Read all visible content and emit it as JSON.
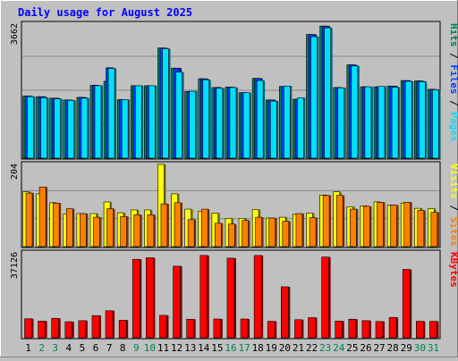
{
  "title": "Daily usage for August 2025",
  "colors": {
    "background": "#c0c0c0",
    "plot_background": "#c0c0c0",
    "title": "#0000ff",
    "hits": "#00805c",
    "files": "#0040ff",
    "pages": "#00e0ff",
    "visits": "#ffff00",
    "sites": "#ff8000",
    "kbytes": "#ff0000",
    "weekend_day_label": "#00805c",
    "day_label": "#000000"
  },
  "panel_labels": {
    "top": [
      {
        "text": "Hits",
        "color": "#00805c"
      },
      {
        "text": " / ",
        "color": "#000000"
      },
      {
        "text": "Files",
        "color": "#0040ff"
      },
      {
        "text": " / ",
        "color": "#000000"
      },
      {
        "text": "Pages",
        "color": "#00e0ff"
      }
    ],
    "middle": [
      {
        "text": "Visits",
        "color": "#ffff00"
      },
      {
        "text": " / ",
        "color": "#000000"
      },
      {
        "text": "Sites",
        "color": "#ff8000"
      }
    ],
    "bottom": [
      {
        "text": "KBytes",
        "color": "#ff0000"
      }
    ]
  },
  "chart_data": [
    {
      "type": "bar",
      "panel": "top",
      "max_label": "3662",
      "ylim": [
        0,
        3662
      ],
      "categories": [
        "1",
        "2",
        "3",
        "4",
        "5",
        "6",
        "7",
        "8",
        "9",
        "10",
        "11",
        "12",
        "13",
        "14",
        "15",
        "16",
        "17",
        "18",
        "19",
        "20",
        "21",
        "22",
        "23",
        "24",
        "25",
        "26",
        "27",
        "28",
        "29",
        "30",
        "31"
      ],
      "series": [
        {
          "name": "Hits",
          "values": [
            1700,
            1680,
            1640,
            1590,
            1660,
            1990,
            2100,
            1600,
            1980,
            1980,
            3010,
            2460,
            1820,
            2170,
            1930,
            1940,
            1790,
            2180,
            1590,
            1960,
            1610,
            3380,
            3610,
            1930,
            2550,
            1950,
            1950,
            1970,
            2120,
            2110,
            1880
          ]
        },
        {
          "name": "Files",
          "values": [
            1700,
            1680,
            1640,
            1590,
            1660,
            1990,
            2470,
            1600,
            1980,
            1980,
            3010,
            2460,
            1820,
            2170,
            1930,
            1940,
            1790,
            2180,
            1590,
            1960,
            1610,
            3380,
            3610,
            1930,
            2550,
            1950,
            1950,
            1970,
            2120,
            2110,
            1880
          ]
        },
        {
          "name": "Pages",
          "values": [
            1680,
            1650,
            1620,
            1580,
            1640,
            1980,
            2450,
            1600,
            1980,
            1980,
            2990,
            2350,
            1830,
            2140,
            1910,
            1930,
            1790,
            2120,
            1560,
            1970,
            1650,
            3320,
            3560,
            1920,
            2520,
            1950,
            1960,
            1940,
            2100,
            2090,
            1870
          ]
        }
      ]
    },
    {
      "type": "bar",
      "panel": "middle",
      "max_label": "204",
      "ylim": [
        0,
        204
      ],
      "categories": [
        "1",
        "2",
        "3",
        "4",
        "5",
        "6",
        "7",
        "8",
        "9",
        "10",
        "11",
        "12",
        "13",
        "14",
        "15",
        "16",
        "17",
        "18",
        "19",
        "20",
        "21",
        "22",
        "23",
        "24",
        "25",
        "26",
        "27",
        "28",
        "29",
        "30",
        "31"
      ],
      "series": [
        {
          "name": "Visits",
          "values": [
            136,
            131,
            109,
            81,
            82,
            82,
            111,
            84,
            91,
            91,
            204,
            131,
            93,
            88,
            83,
            70,
            70,
            92,
            71,
            73,
            80,
            83,
            128,
            136,
            99,
            101,
            111,
            103,
            108,
            95,
            94
          ]
        },
        {
          "name": "Sites",
          "values": [
            133,
            148,
            108,
            94,
            82,
            73,
            94,
            75,
            79,
            79,
            106,
            109,
            67,
            93,
            58,
            56,
            65,
            73,
            71,
            63,
            82,
            72,
            127,
            127,
            93,
            100,
            110,
            103,
            110,
            90,
            85
          ]
        }
      ]
    },
    {
      "type": "bar",
      "panel": "bottom",
      "max_label": "37126",
      "ylim": [
        0,
        37126
      ],
      "categories": [
        "1",
        "2",
        "3",
        "4",
        "5",
        "6",
        "7",
        "8",
        "9",
        "10",
        "11",
        "12",
        "13",
        "14",
        "15",
        "16",
        "17",
        "18",
        "19",
        "20",
        "21",
        "22",
        "23",
        "24",
        "25",
        "26",
        "27",
        "28",
        "29",
        "30",
        "31"
      ],
      "series": [
        {
          "name": "KBytes",
          "values": [
            8300,
            7300,
            8500,
            7000,
            7500,
            9700,
            11800,
            7700,
            34300,
            35000,
            9800,
            31300,
            8100,
            36000,
            8200,
            34800,
            8200,
            36000,
            7200,
            22300,
            7900,
            8800,
            35300,
            7300,
            8100,
            7500,
            7100,
            8900,
            29900,
            7200,
            7200
          ]
        }
      ]
    }
  ],
  "days": [
    {
      "label": "1",
      "weekend": false
    },
    {
      "label": "2",
      "weekend": true
    },
    {
      "label": "3",
      "weekend": true
    },
    {
      "label": "4",
      "weekend": false
    },
    {
      "label": "5",
      "weekend": false
    },
    {
      "label": "6",
      "weekend": false
    },
    {
      "label": "7",
      "weekend": false
    },
    {
      "label": "8",
      "weekend": false
    },
    {
      "label": "9",
      "weekend": true
    },
    {
      "label": "10",
      "weekend": true
    },
    {
      "label": "11",
      "weekend": false
    },
    {
      "label": "12",
      "weekend": false
    },
    {
      "label": "13",
      "weekend": false
    },
    {
      "label": "14",
      "weekend": false
    },
    {
      "label": "15",
      "weekend": false
    },
    {
      "label": "16",
      "weekend": true
    },
    {
      "label": "17",
      "weekend": true
    },
    {
      "label": "18",
      "weekend": false
    },
    {
      "label": "19",
      "weekend": false
    },
    {
      "label": "20",
      "weekend": false
    },
    {
      "label": "21",
      "weekend": false
    },
    {
      "label": "22",
      "weekend": false
    },
    {
      "label": "23",
      "weekend": true
    },
    {
      "label": "24",
      "weekend": true
    },
    {
      "label": "25",
      "weekend": false
    },
    {
      "label": "26",
      "weekend": false
    },
    {
      "label": "27",
      "weekend": false
    },
    {
      "label": "28",
      "weekend": false
    },
    {
      "label": "29",
      "weekend": false
    },
    {
      "label": "30",
      "weekend": true
    },
    {
      "label": "31",
      "weekend": true
    }
  ]
}
